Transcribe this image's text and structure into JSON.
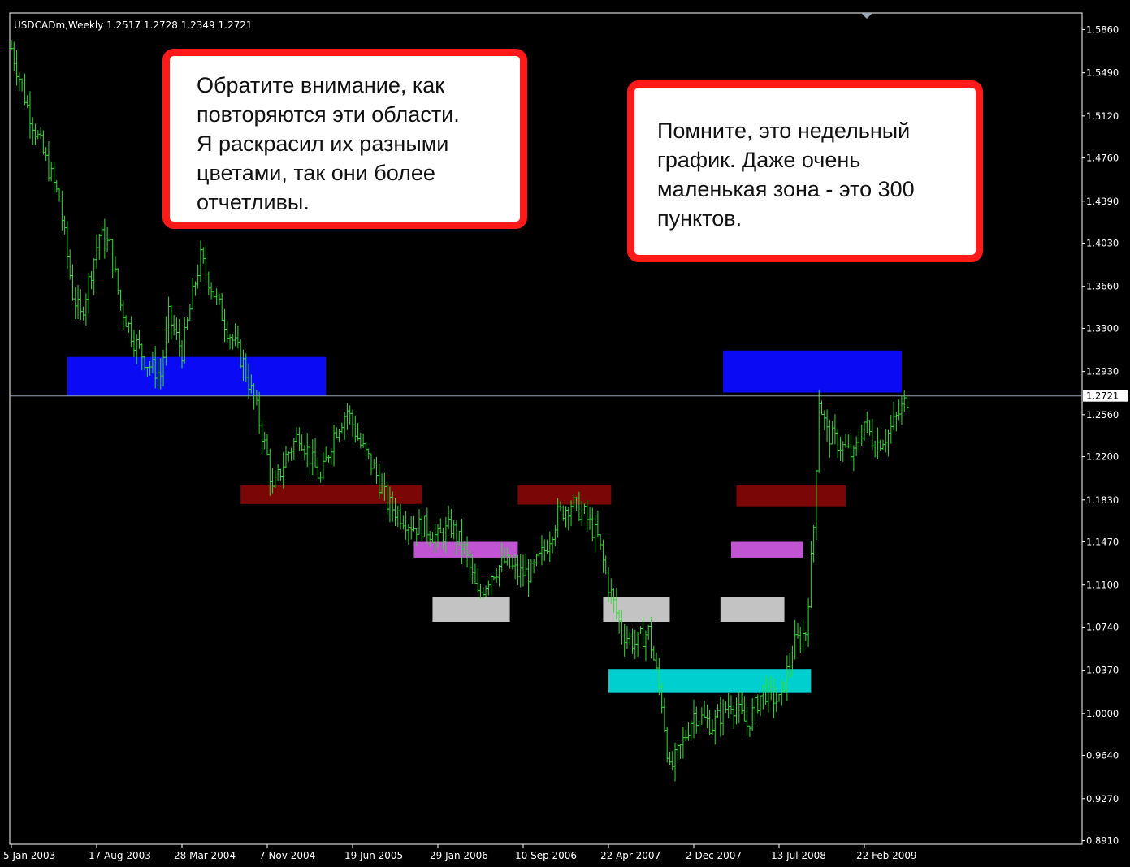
{
  "chart_header": "USDCADm,Weekly  1.2517 1.2728 1.2349 1.2721",
  "annotations": [
    {
      "lines": [
        "Обратите внимание, как",
        "повторяются эти области.",
        "Я раскрасил их разными",
        "цветами, так они более",
        "отчетливы."
      ]
    },
    {
      "lines": [
        "Помните, это недельный",
        "график. Даже очень",
        "маленькая зона - это 300",
        "пунктов."
      ]
    }
  ],
  "colors": {
    "background": "#000000",
    "bars": "#33dd33",
    "axis": "#ffffff",
    "current_price_line": "#8fa2b4",
    "zone_blue": "#0a0af5",
    "zone_darkred": "#7a0606",
    "zone_purple": "#c154d2",
    "zone_gray": "#c3c3c3",
    "zone_cyan": "#00cfd0",
    "annotation_border": "#ff1a1a"
  },
  "chart_data": {
    "type": "ohlc",
    "symbol": "USDCADm",
    "timeframe": "Weekly",
    "ohlc_last": {
      "open": 1.2517,
      "high": 1.2728,
      "low": 1.2349,
      "close": 1.2721
    },
    "current_price": 1.2721,
    "current_price_label": "1.2721",
    "x_range": [
      "2003-01-05",
      "2009-06-14"
    ],
    "ylim": [
      0.891,
      1.601
    ],
    "y_ticks": [
      "1.5860",
      "1.5490",
      "1.5120",
      "1.4760",
      "1.4390",
      "1.4030",
      "1.3660",
      "1.3300",
      "1.2930",
      "1.2560",
      "1.2200",
      "1.1830",
      "1.1470",
      "1.1100",
      "1.0740",
      "1.0370",
      "1.0000",
      "0.9640",
      "0.9270",
      "0.8910"
    ],
    "x_ticks": [
      {
        "date": "2003-01-05",
        "label": "5 Jan 2003"
      },
      {
        "date": "2003-08-17",
        "label": "17 Aug 2003"
      },
      {
        "date": "2004-03-28",
        "label": "28 Mar 2004"
      },
      {
        "date": "2004-11-07",
        "label": "7 Nov 2004"
      },
      {
        "date": "2005-06-19",
        "label": "19 Jun 2005"
      },
      {
        "date": "2006-01-29",
        "label": "29 Jan 2006"
      },
      {
        "date": "2006-09-10",
        "label": "10 Sep 2006"
      },
      {
        "date": "2007-04-22",
        "label": "22 Apr 2007"
      },
      {
        "date": "2007-12-02",
        "label": "2 Dec 2007"
      },
      {
        "date": "2008-07-13",
        "label": "13 Jul 2008"
      },
      {
        "date": "2009-02-22",
        "label": "22 Feb 2009"
      }
    ],
    "price_path": [
      [
        "2003-01-05",
        1.57
      ],
      [
        "2003-02-16",
        1.52
      ],
      [
        "2003-03-30",
        1.48
      ],
      [
        "2003-05-11",
        1.44
      ],
      [
        "2003-06-15",
        1.36
      ],
      [
        "2003-07-06",
        1.34
      ],
      [
        "2003-08-03",
        1.38
      ],
      [
        "2003-08-24",
        1.41
      ],
      [
        "2003-09-21",
        1.4
      ],
      [
        "2003-10-19",
        1.35
      ],
      [
        "2003-11-23",
        1.32
      ],
      [
        "2003-12-28",
        1.3
      ],
      [
        "2004-02-01",
        1.29
      ],
      [
        "2004-02-22",
        1.34
      ],
      [
        "2004-03-28",
        1.31
      ],
      [
        "2004-05-02",
        1.37
      ],
      [
        "2004-05-16",
        1.39
      ],
      [
        "2004-06-20",
        1.36
      ],
      [
        "2004-07-25",
        1.33
      ],
      [
        "2004-09-05",
        1.3
      ],
      [
        "2004-10-10",
        1.26
      ],
      [
        "2004-11-07",
        1.22
      ],
      [
        "2004-11-21",
        1.19
      ],
      [
        "2004-12-26",
        1.22
      ],
      [
        "2005-01-30",
        1.24
      ],
      [
        "2005-02-27",
        1.22
      ],
      [
        "2005-03-27",
        1.2
      ],
      [
        "2005-05-01",
        1.24
      ],
      [
        "2005-06-05",
        1.26
      ],
      [
        "2005-07-10",
        1.23
      ],
      [
        "2005-08-14",
        1.21
      ],
      [
        "2005-09-18",
        1.18
      ],
      [
        "2005-10-23",
        1.17
      ],
      [
        "2005-11-27",
        1.16
      ],
      [
        "2005-12-25",
        1.16
      ],
      [
        "2006-01-29",
        1.15
      ],
      [
        "2006-03-05",
        1.16
      ],
      [
        "2006-04-09",
        1.14
      ],
      [
        "2006-05-14",
        1.1
      ],
      [
        "2006-06-18",
        1.12
      ],
      [
        "2006-07-23",
        1.13
      ],
      [
        "2006-08-27",
        1.12
      ],
      [
        "2006-10-01",
        1.12
      ],
      [
        "2006-11-05",
        1.14
      ],
      [
        "2006-12-10",
        1.17
      ],
      [
        "2007-01-14",
        1.18
      ],
      [
        "2007-02-18",
        1.17
      ],
      [
        "2007-03-25",
        1.15
      ],
      [
        "2007-04-22",
        1.11
      ],
      [
        "2007-05-27",
        1.07
      ],
      [
        "2007-07-01",
        1.06
      ],
      [
        "2007-08-05",
        1.07
      ],
      [
        "2007-09-09",
        1.01
      ],
      [
        "2007-09-30",
        0.95
      ],
      [
        "2007-10-28",
        0.97
      ],
      [
        "2007-12-02",
        1.0
      ],
      [
        "2008-01-20",
        0.99
      ],
      [
        "2008-03-09",
        1.01
      ],
      [
        "2008-04-20",
        0.99
      ],
      [
        "2008-06-01",
        1.02
      ],
      [
        "2008-07-13",
        1.01
      ],
      [
        "2008-08-24",
        1.06
      ],
      [
        "2008-09-21",
        1.07
      ],
      [
        "2008-10-12",
        1.16
      ],
      [
        "2008-10-26",
        1.27
      ],
      [
        "2008-11-16",
        1.24
      ],
      [
        "2008-12-21",
        1.23
      ],
      [
        "2009-01-25",
        1.22
      ],
      [
        "2009-02-22",
        1.25
      ],
      [
        "2009-03-22",
        1.23
      ],
      [
        "2009-04-26",
        1.24
      ],
      [
        "2009-06-14",
        1.27
      ]
    ],
    "zones": [
      {
        "color": "zone_blue",
        "from": "2003-06-01",
        "to": "2005-04-10",
        "low": 1.272,
        "high": 1.3055
      },
      {
        "color": "zone_darkred",
        "from": "2004-08-29",
        "to": "2005-12-18",
        "low": 1.1795,
        "high": 1.1955
      },
      {
        "color": "zone_purple",
        "from": "2005-11-27",
        "to": "2006-08-27",
        "low": 1.1335,
        "high": 1.147
      },
      {
        "color": "zone_gray",
        "from": "2006-01-15",
        "to": "2006-08-06",
        "low": 1.0785,
        "high": 1.0995
      },
      {
        "color": "zone_darkred",
        "from": "2006-08-27",
        "to": "2007-04-29",
        "low": 1.179,
        "high": 1.1955
      },
      {
        "color": "zone_gray",
        "from": "2007-04-08",
        "to": "2007-09-30",
        "low": 1.0785,
        "high": 1.0995
      },
      {
        "color": "zone_cyan",
        "from": "2007-04-22",
        "to": "2008-10-05",
        "low": 1.0175,
        "high": 1.038
      },
      {
        "color": "zone_blue",
        "from": "2008-02-17",
        "to": "2009-05-31",
        "low": 1.275,
        "high": 1.311
      },
      {
        "color": "zone_gray",
        "from": "2008-02-10",
        "to": "2008-07-27",
        "low": 1.0785,
        "high": 1.0995
      },
      {
        "color": "zone_darkred",
        "from": "2008-03-23",
        "to": "2009-01-04",
        "low": 1.1775,
        "high": 1.1955
      },
      {
        "color": "zone_purple",
        "from": "2008-03-09",
        "to": "2008-09-14",
        "low": 1.1335,
        "high": 1.147
      }
    ]
  }
}
